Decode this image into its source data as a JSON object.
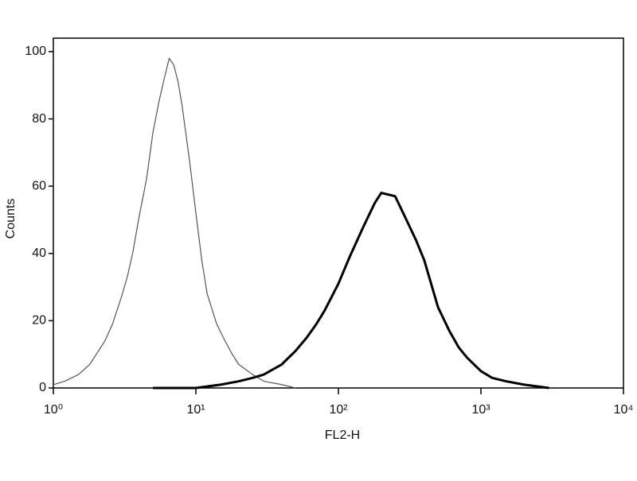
{
  "chart_data": {
    "type": "line",
    "xlabel": "FL2-H",
    "ylabel": "Counts",
    "xscale": "log",
    "xlim": [
      1,
      10000
    ],
    "xticks": [
      {
        "value": 1,
        "label": "10⁰"
      },
      {
        "value": 10,
        "label": "10¹"
      },
      {
        "value": 100,
        "label": "10²"
      },
      {
        "value": 1000,
        "label": "10³"
      },
      {
        "value": 10000,
        "label": "10⁴"
      }
    ],
    "ylim": [
      0,
      104
    ],
    "yticks": [
      0,
      20,
      40,
      60,
      80,
      100
    ],
    "series": [
      {
        "color": "#555555",
        "width": 1.2,
        "x": [
          1,
          1.2,
          1.5,
          1.8,
          2,
          2.3,
          2.6,
          3,
          3.3,
          3.6,
          4,
          4.5,
          5,
          5.5,
          6,
          6.5,
          7,
          7.5,
          8,
          9,
          10,
          11,
          12,
          14,
          16,
          18,
          20,
          25,
          30,
          40,
          50
        ],
        "values": [
          1,
          2,
          4,
          7,
          10,
          14,
          19,
          27,
          33,
          40,
          51,
          62,
          76,
          85,
          92,
          98,
          96,
          91,
          84,
          68,
          52,
          38,
          28,
          19,
          14,
          10,
          7,
          4,
          2,
          1,
          0
        ]
      },
      {
        "color": "#000000",
        "width": 3,
        "x": [
          5,
          10,
          15,
          20,
          25,
          30,
          40,
          50,
          60,
          70,
          80,
          100,
          120,
          150,
          180,
          200,
          250,
          300,
          350,
          400,
          500,
          600,
          700,
          800,
          1000,
          1200,
          1500,
          2000,
          3000
        ],
        "values": [
          0,
          0,
          1,
          2,
          3,
          4,
          7,
          11,
          15,
          19,
          23,
          31,
          39,
          48,
          55,
          58,
          57,
          50,
          44,
          38,
          24,
          17,
          12,
          9,
          5,
          3,
          2,
          1,
          0
        ]
      }
    ]
  }
}
